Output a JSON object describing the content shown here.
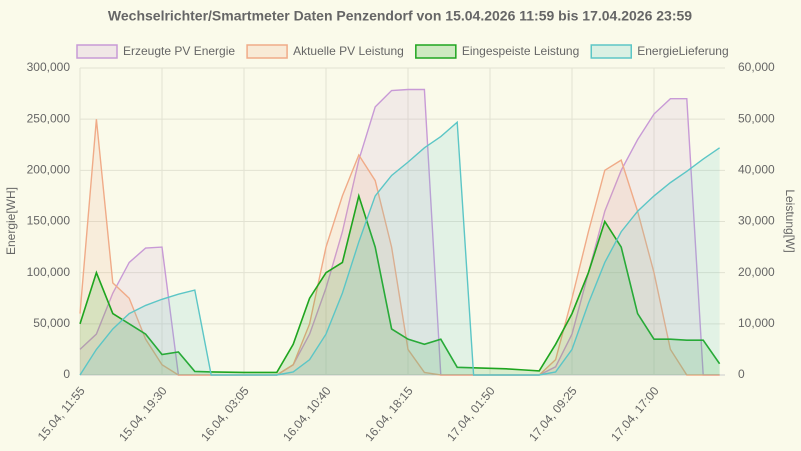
{
  "chart_data": {
    "type": "line",
    "title": "Wechselrichter/Smartmeter Daten Penzendorf von 15.04.2026 11:59 bis 17.04.2026 23:59",
    "y_label": "Energie[WH]",
    "y2_label": "Leistung[W]",
    "categories": [
      "15.04, 11:55",
      null,
      null,
      null,
      null,
      "15.04, 19:30",
      null,
      null,
      null,
      null,
      "16.04, 03:05",
      null,
      null,
      null,
      null,
      "16.04, 10:40",
      null,
      null,
      null,
      null,
      "16.04, 18:15",
      null,
      null,
      null,
      null,
      "17.04, 01:50",
      null,
      null,
      null,
      null,
      "17.04, 09:25",
      null,
      null,
      null,
      null,
      "17.04, 17:00",
      null,
      null,
      null,
      null
    ],
    "series": [
      {
        "name": "Erzeugte PV Energie",
        "color": "#c89ad6",
        "axis": "y",
        "values": [
          25000,
          40000,
          80000,
          110000,
          124000,
          125000,
          0,
          0,
          0,
          0,
          0,
          0,
          0,
          10000,
          40000,
          85000,
          140000,
          210000,
          262000,
          278000,
          279000,
          279000,
          0,
          0,
          0,
          0,
          0,
          0,
          0,
          8000,
          40000,
          100000,
          160000,
          200000,
          230000,
          255000,
          270000,
          270000,
          0,
          0
        ]
      },
      {
        "name": "Aktuelle PV Leistung",
        "color": "#f0ab88",
        "axis": "y2",
        "values": [
          12000,
          50000,
          18000,
          15000,
          7000,
          2000,
          0,
          0,
          0,
          0,
          0,
          0,
          0,
          2000,
          10000,
          25000,
          35000,
          43000,
          38000,
          25000,
          5000,
          500,
          0,
          0,
          0,
          0,
          0,
          0,
          0,
          3000,
          15000,
          28000,
          40000,
          42000,
          32000,
          20000,
          5000,
          0,
          0,
          0
        ]
      },
      {
        "name": "Eingespeiste Leistung",
        "color": "#1fa51f",
        "axis": "y2",
        "values": [
          10000,
          20000,
          12000,
          10000,
          8000,
          4000,
          4500,
          700,
          600,
          550,
          500,
          500,
          500,
          6000,
          15000,
          20000,
          22000,
          35000,
          25000,
          9000,
          7000,
          6000,
          7000,
          1500,
          1400,
          1300,
          1200,
          1000,
          800,
          6000,
          12000,
          20000,
          30000,
          25000,
          12000,
          7000,
          7000,
          6800,
          6800,
          2200
        ]
      },
      {
        "name": "EnergieLieferung",
        "color": "#5cc6c6",
        "axis": "y",
        "values": [
          0,
          25000,
          45000,
          60000,
          68000,
          74000,
          79000,
          83000,
          0,
          0,
          0,
          0,
          0,
          3000,
          15000,
          40000,
          80000,
          130000,
          175000,
          195000,
          208000,
          222000,
          233000,
          247000,
          0,
          0,
          0,
          0,
          0,
          3000,
          25000,
          70000,
          110000,
          140000,
          160000,
          175000,
          188000,
          199000,
          211000,
          222000
        ]
      }
    ],
    "ylim": [
      0,
      300000
    ],
    "yticks": [
      0,
      {
        "value": 50000,
        "label": "50,000"
      },
      {
        "value": 100000,
        "label": "100,000"
      },
      {
        "value": 150000,
        "label": "150,000"
      },
      {
        "value": 200000,
        "label": "200,000"
      },
      {
        "value": 250000,
        "label": "250,000"
      },
      {
        "value": 300000,
        "label": "300,000"
      }
    ],
    "y2lim": [
      0,
      60000
    ],
    "y2ticks": [
      0,
      {
        "value": 10000,
        "label": "10,000"
      },
      {
        "value": 20000,
        "label": "20,000"
      },
      {
        "value": 30000,
        "label": "30,000"
      },
      {
        "value": 40000,
        "label": "40,000"
      },
      {
        "value": 50000,
        "label": "50,000"
      },
      {
        "value": 60000,
        "label": "60,000"
      }
    ],
    "grid": true,
    "legend": "top"
  }
}
